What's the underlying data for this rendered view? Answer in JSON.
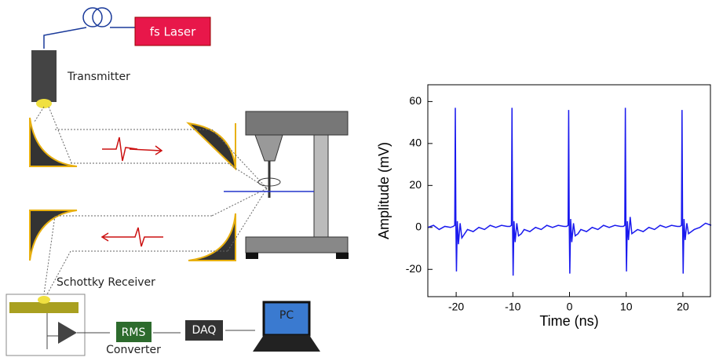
{
  "diagram": {
    "laser": "fs Laser",
    "transmitter": "Transmitter",
    "receiver": "Schottky Receiver",
    "rms": "RMS",
    "converter": "Converter",
    "daq": "DAQ",
    "pc": "PC"
  },
  "chart_data": {
    "type": "line",
    "x_label": "Time (ns)",
    "y_label": "Amplitude (mV)",
    "color": "#1a1aee",
    "xlim": [
      -25,
      25
    ],
    "ylim": [
      -33,
      68
    ],
    "xticks": [
      -20,
      -10,
      0,
      10,
      20
    ],
    "yticks": [
      -20,
      0,
      20,
      40,
      60
    ],
    "x": [
      -25,
      -24,
      -23,
      -22,
      -21,
      -20.5,
      -20.25,
      -20.15,
      -20.05,
      -19.95,
      -19.8,
      -19.6,
      -19.3,
      -19,
      -18.5,
      -18,
      -17,
      -16,
      -15,
      -14,
      -13,
      -12,
      -11,
      -10.5,
      -10.25,
      -10.15,
      -10.05,
      -9.95,
      -9.8,
      -9.6,
      -9.3,
      -9,
      -8.5,
      -8,
      -7,
      -6,
      -5,
      -4,
      -3,
      -2,
      -1,
      -0.5,
      -0.25,
      -0.15,
      -0.05,
      0.05,
      0.2,
      0.4,
      0.7,
      1,
      1.5,
      2,
      3,
      4,
      5,
      6,
      7,
      8,
      9,
      9.5,
      9.75,
      9.85,
      9.95,
      10.05,
      10.2,
      10.4,
      10.7,
      11,
      11.5,
      12,
      13,
      14,
      15,
      16,
      17,
      18,
      19,
      19.5,
      19.75,
      19.85,
      19.95,
      20.05,
      20.2,
      20.4,
      20.7,
      21,
      21.5,
      22,
      23,
      24,
      25
    ],
    "values": [
      0,
      1,
      -1,
      0.5,
      0,
      0.5,
      1,
      57,
      2,
      -21,
      3,
      -8,
      2,
      -5,
      -3,
      -1,
      -2,
      0,
      -1,
      1,
      0,
      1,
      0.5,
      0.5,
      1,
      57,
      2,
      -23,
      3,
      -7,
      2,
      -4,
      -3,
      -1,
      -2,
      0,
      -1,
      1,
      0,
      1,
      0.5,
      0.5,
      1,
      56,
      2,
      -22,
      4,
      -7,
      2,
      -4,
      -3,
      -1,
      -2,
      0,
      -1,
      1,
      0,
      1,
      0.5,
      0.5,
      1,
      57,
      2,
      -21,
      3,
      -6,
      5,
      -3,
      -2,
      -1,
      -2,
      0,
      -1,
      1,
      0,
      1,
      0.5,
      0.5,
      1,
      56,
      2,
      -22,
      4,
      -6,
      2,
      -3,
      -2,
      -1,
      0,
      2,
      1
    ]
  }
}
